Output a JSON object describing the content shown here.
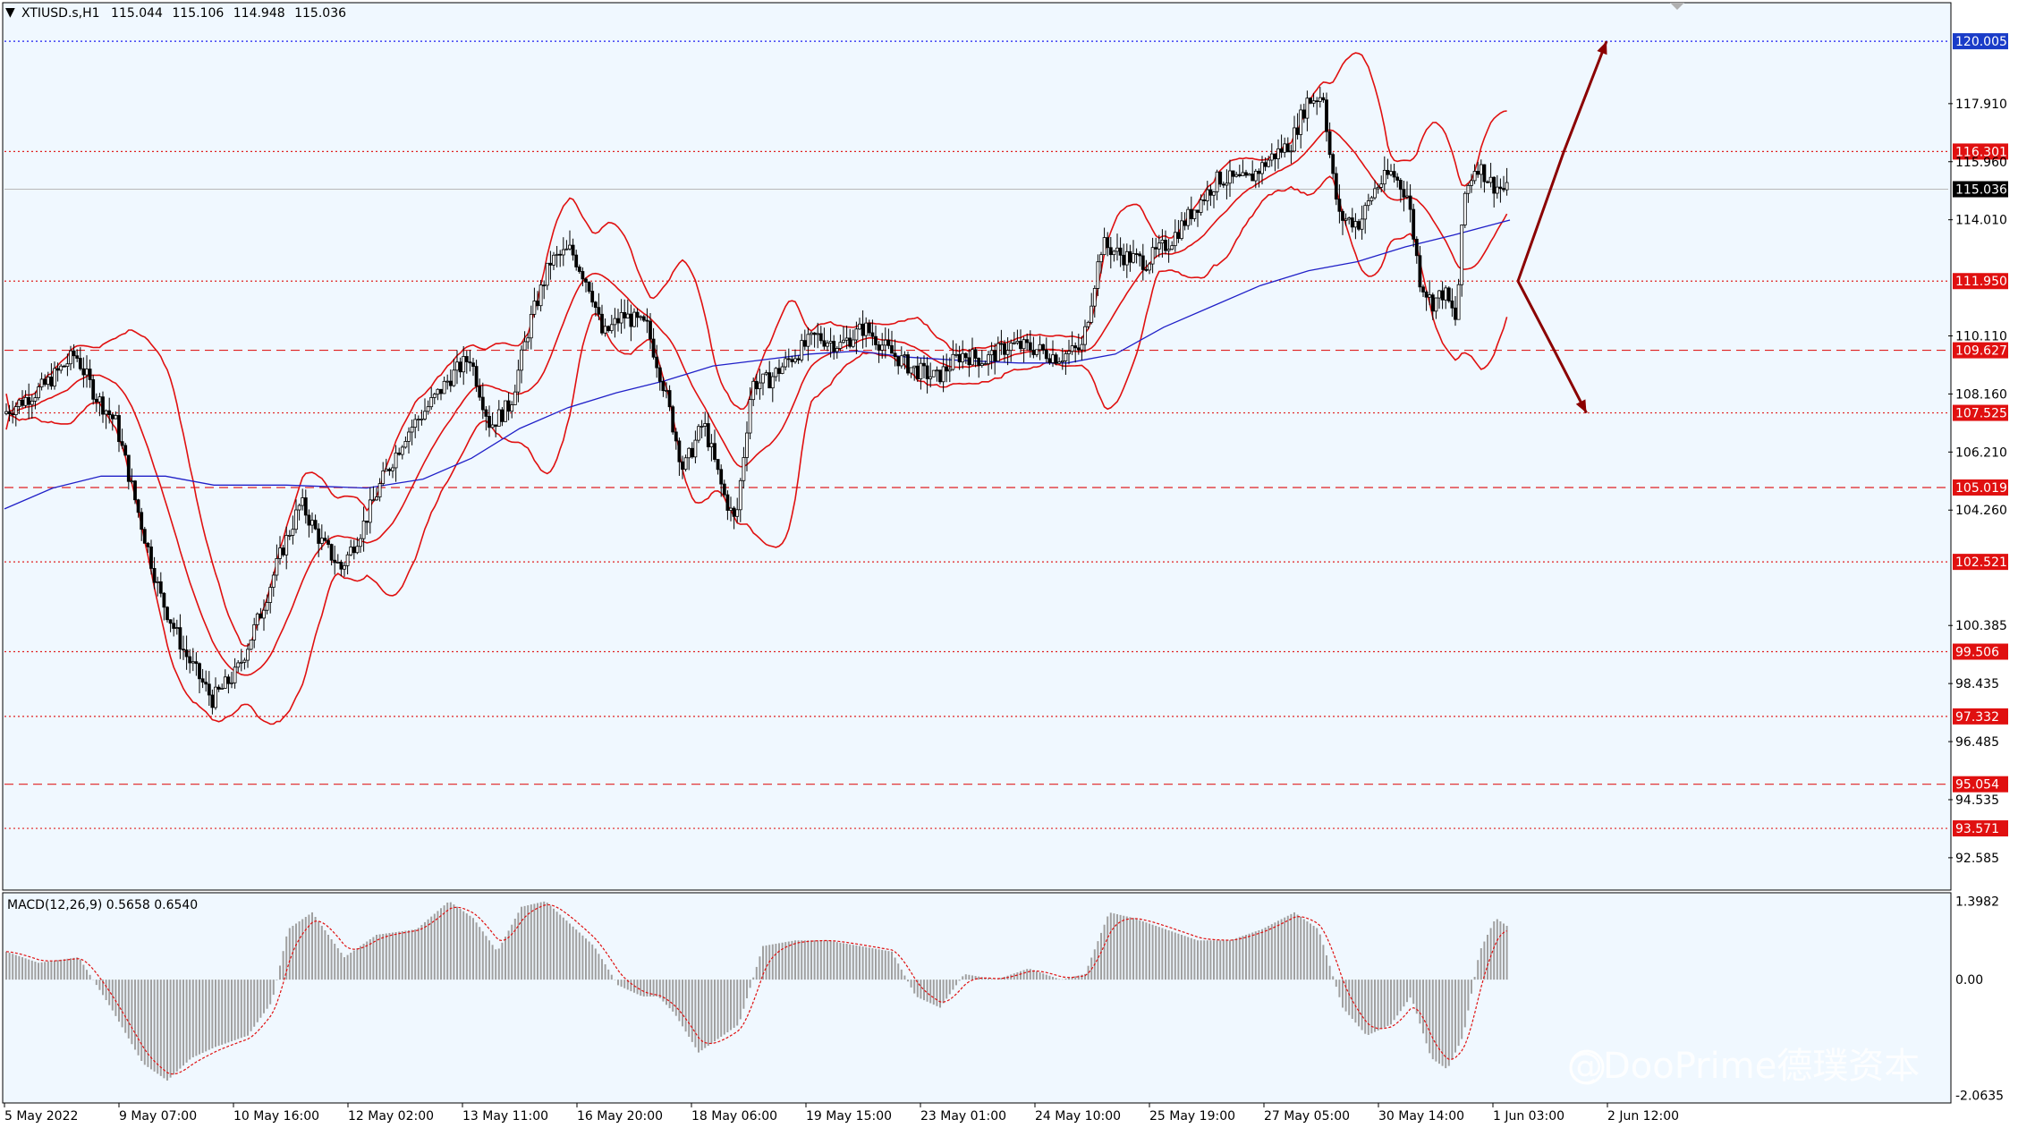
{
  "chart_data": [
    {
      "type": "candlestick",
      "symbol": "XTIUSD.s,H1",
      "ohlc": {
        "open": "115.044",
        "high": "115.106",
        "low": "114.948",
        "close": "115.036"
      },
      "ylim": [
        91.5,
        121.3
      ],
      "y_ticks": [
        "117.910",
        "115.960",
        "114.010",
        "110.110",
        "108.160",
        "106.210",
        "104.260",
        "100.385",
        "98.435",
        "96.485",
        "94.535",
        "92.585"
      ],
      "x_tick_labels": [
        "5 May 2022",
        "9 May 07:00",
        "10 May 16:00",
        "12 May 02:00",
        "13 May 11:00",
        "16 May 20:00",
        "18 May 06:00",
        "19 May 15:00",
        "23 May 01:00",
        "24 May 10:00",
        "25 May 19:00",
        "27 May 05:00",
        "30 May 14:00",
        "1 Jun 03:00",
        "2 Jun 12:00"
      ],
      "current_price": "115.036",
      "levels": [
        {
          "label": "120.005",
          "value": 120.005,
          "style": "blue-dotted"
        },
        {
          "label": "116.301",
          "value": 116.301,
          "style": "red-dotted"
        },
        {
          "label": "111.950",
          "value": 111.95,
          "style": "red-dotted"
        },
        {
          "label": "109.627",
          "value": 109.627,
          "style": "red-dashed"
        },
        {
          "label": "107.525",
          "value": 107.525,
          "style": "red-dotted"
        },
        {
          "label": "105.019",
          "value": 105.019,
          "style": "red-dashed"
        },
        {
          "label": "102.521",
          "value": 102.521,
          "style": "red-dotted"
        },
        {
          "label": "99.506",
          "value": 99.506,
          "style": "red-dotted"
        },
        {
          "label": "97.332",
          "value": 97.332,
          "style": "red-dotted"
        },
        {
          "label": "95.054",
          "value": 95.054,
          "style": "red-dashed"
        },
        {
          "label": "93.571",
          "value": 93.571,
          "style": "red-dotted"
        }
      ],
      "indicators": [
        "Bollinger Bands",
        "Moving Average"
      ],
      "price_path": [
        [
          0,
          107.5
        ],
        [
          50,
          108.4
        ],
        [
          90,
          109.5
        ],
        [
          115,
          108.1
        ],
        [
          140,
          107.2
        ],
        [
          165,
          104.5
        ],
        [
          195,
          101.4
        ],
        [
          225,
          99.5
        ],
        [
          260,
          97.9
        ],
        [
          290,
          98.8
        ],
        [
          320,
          100.8
        ],
        [
          345,
          102.8
        ],
        [
          370,
          104.5
        ],
        [
          395,
          103.2
        ],
        [
          420,
          102.3
        ],
        [
          445,
          103.6
        ],
        [
          470,
          105.2
        ],
        [
          500,
          106.8
        ],
        [
          530,
          107.8
        ],
        [
          555,
          108.7
        ],
        [
          580,
          109.4
        ],
        [
          605,
          107.1
        ],
        [
          630,
          107.8
        ],
        [
          655,
          110.6
        ],
        [
          680,
          112.6
        ],
        [
          705,
          113.0
        ],
        [
          730,
          111.7
        ],
        [
          745,
          110.1
        ],
        [
          770,
          110.8
        ],
        [
          800,
          110.4
        ],
        [
          820,
          108.5
        ],
        [
          845,
          105.6
        ],
        [
          870,
          107.2
        ],
        [
          895,
          104.8
        ],
        [
          910,
          103.8
        ],
        [
          930,
          108.5
        ],
        [
          950,
          108.6
        ],
        [
          980,
          109.4
        ],
        [
          1010,
          110.1
        ],
        [
          1040,
          109.8
        ],
        [
          1070,
          110.4
        ],
        [
          1100,
          109.6
        ],
        [
          1130,
          109.0
        ],
        [
          1160,
          108.7
        ],
        [
          1190,
          109.5
        ],
        [
          1220,
          109.3
        ],
        [
          1250,
          109.8
        ],
        [
          1280,
          109.7
        ],
        [
          1310,
          109.4
        ],
        [
          1340,
          109.7
        ],
        [
          1365,
          113.2
        ],
        [
          1390,
          112.8
        ],
        [
          1420,
          112.6
        ],
        [
          1450,
          113.3
        ],
        [
          1480,
          114.4
        ],
        [
          1510,
          115.4
        ],
        [
          1545,
          115.3
        ],
        [
          1575,
          116.1
        ],
        [
          1600,
          116.6
        ],
        [
          1620,
          118.0
        ],
        [
          1640,
          118.2
        ],
        [
          1650,
          115.7
        ],
        [
          1660,
          114.1
        ],
        [
          1685,
          113.9
        ],
        [
          1705,
          115.1
        ],
        [
          1725,
          115.6
        ],
        [
          1745,
          114.8
        ],
        [
          1760,
          112.0
        ],
        [
          1775,
          111.2
        ],
        [
          1790,
          111.6
        ],
        [
          1805,
          110.6
        ],
        [
          1815,
          114.8
        ],
        [
          1830,
          115.9
        ],
        [
          1850,
          115.2
        ],
        [
          1865,
          115.0
        ]
      ],
      "ma_path": [
        [
          0,
          104.3
        ],
        [
          60,
          105.0
        ],
        [
          120,
          105.4
        ],
        [
          200,
          105.4
        ],
        [
          260,
          105.1
        ],
        [
          350,
          105.1
        ],
        [
          450,
          105.0
        ],
        [
          520,
          105.3
        ],
        [
          580,
          106.0
        ],
        [
          640,
          107.0
        ],
        [
          700,
          107.7
        ],
        [
          760,
          108.2
        ],
        [
          820,
          108.6
        ],
        [
          880,
          109.1
        ],
        [
          940,
          109.3
        ],
        [
          1000,
          109.5
        ],
        [
          1060,
          109.6
        ],
        [
          1120,
          109.4
        ],
        [
          1180,
          109.3
        ],
        [
          1260,
          109.2
        ],
        [
          1320,
          109.2
        ],
        [
          1380,
          109.5
        ],
        [
          1440,
          110.4
        ],
        [
          1500,
          111.1
        ],
        [
          1560,
          111.8
        ],
        [
          1620,
          112.3
        ],
        [
          1680,
          112.6
        ],
        [
          1740,
          113.1
        ],
        [
          1800,
          113.5
        ],
        [
          1870,
          114.0
        ]
      ],
      "projection": [
        {
          "from": [
            1880,
            111.95
          ],
          "via": [
            1937,
            116.301
          ],
          "to": [
            1990,
            120.005
          ]
        },
        {
          "from": [
            1880,
            111.95
          ],
          "via": [
            1925,
            109.627
          ],
          "to": [
            1965,
            107.525
          ]
        }
      ]
    },
    {
      "type": "histogram",
      "title": "MACD(12,26,9) 0.5658 0.6540",
      "ylim": [
        -2.2,
        1.55
      ],
      "y_ticks": [
        "1.3982",
        "0.00",
        "-2.0635"
      ],
      "macd_path": [
        [
          0,
          0.5
        ],
        [
          40,
          0.3
        ],
        [
          90,
          0.4
        ],
        [
          130,
          -0.5
        ],
        [
          170,
          -1.5
        ],
        [
          200,
          -1.8
        ],
        [
          230,
          -1.4
        ],
        [
          260,
          -1.2
        ],
        [
          300,
          -1.0
        ],
        [
          330,
          -0.4
        ],
        [
          350,
          0.9
        ],
        [
          380,
          1.2
        ],
        [
          420,
          0.4
        ],
        [
          460,
          0.8
        ],
        [
          510,
          0.9
        ],
        [
          550,
          1.4
        ],
        [
          580,
          1.1
        ],
        [
          610,
          0.5
        ],
        [
          640,
          1.3
        ],
        [
          670,
          1.4
        ],
        [
          700,
          1.0
        ],
        [
          730,
          0.6
        ],
        [
          760,
          -0.1
        ],
        [
          790,
          -0.3
        ],
        [
          810,
          -0.3
        ],
        [
          830,
          -0.6
        ],
        [
          860,
          -1.3
        ],
        [
          890,
          -1.0
        ],
        [
          910,
          -0.8
        ],
        [
          940,
          0.6
        ],
        [
          980,
          0.7
        ],
        [
          1020,
          0.7
        ],
        [
          1060,
          0.6
        ],
        [
          1100,
          0.5
        ],
        [
          1130,
          -0.3
        ],
        [
          1160,
          -0.5
        ],
        [
          1190,
          0.1
        ],
        [
          1230,
          0.0
        ],
        [
          1270,
          0.2
        ],
        [
          1310,
          0.0
        ],
        [
          1340,
          0.1
        ],
        [
          1370,
          1.2
        ],
        [
          1400,
          1.1
        ],
        [
          1440,
          0.9
        ],
        [
          1480,
          0.7
        ],
        [
          1520,
          0.7
        ],
        [
          1560,
          0.9
        ],
        [
          1600,
          1.2
        ],
        [
          1630,
          0.9
        ],
        [
          1660,
          -0.5
        ],
        [
          1690,
          -1.0
        ],
        [
          1720,
          -0.8
        ],
        [
          1745,
          -0.3
        ],
        [
          1770,
          -1.4
        ],
        [
          1790,
          -1.6
        ],
        [
          1810,
          -1.0
        ],
        [
          1830,
          0.5
        ],
        [
          1850,
          1.1
        ],
        [
          1870,
          0.9
        ]
      ]
    }
  ],
  "watermark": "@DooPrime德璞资本"
}
